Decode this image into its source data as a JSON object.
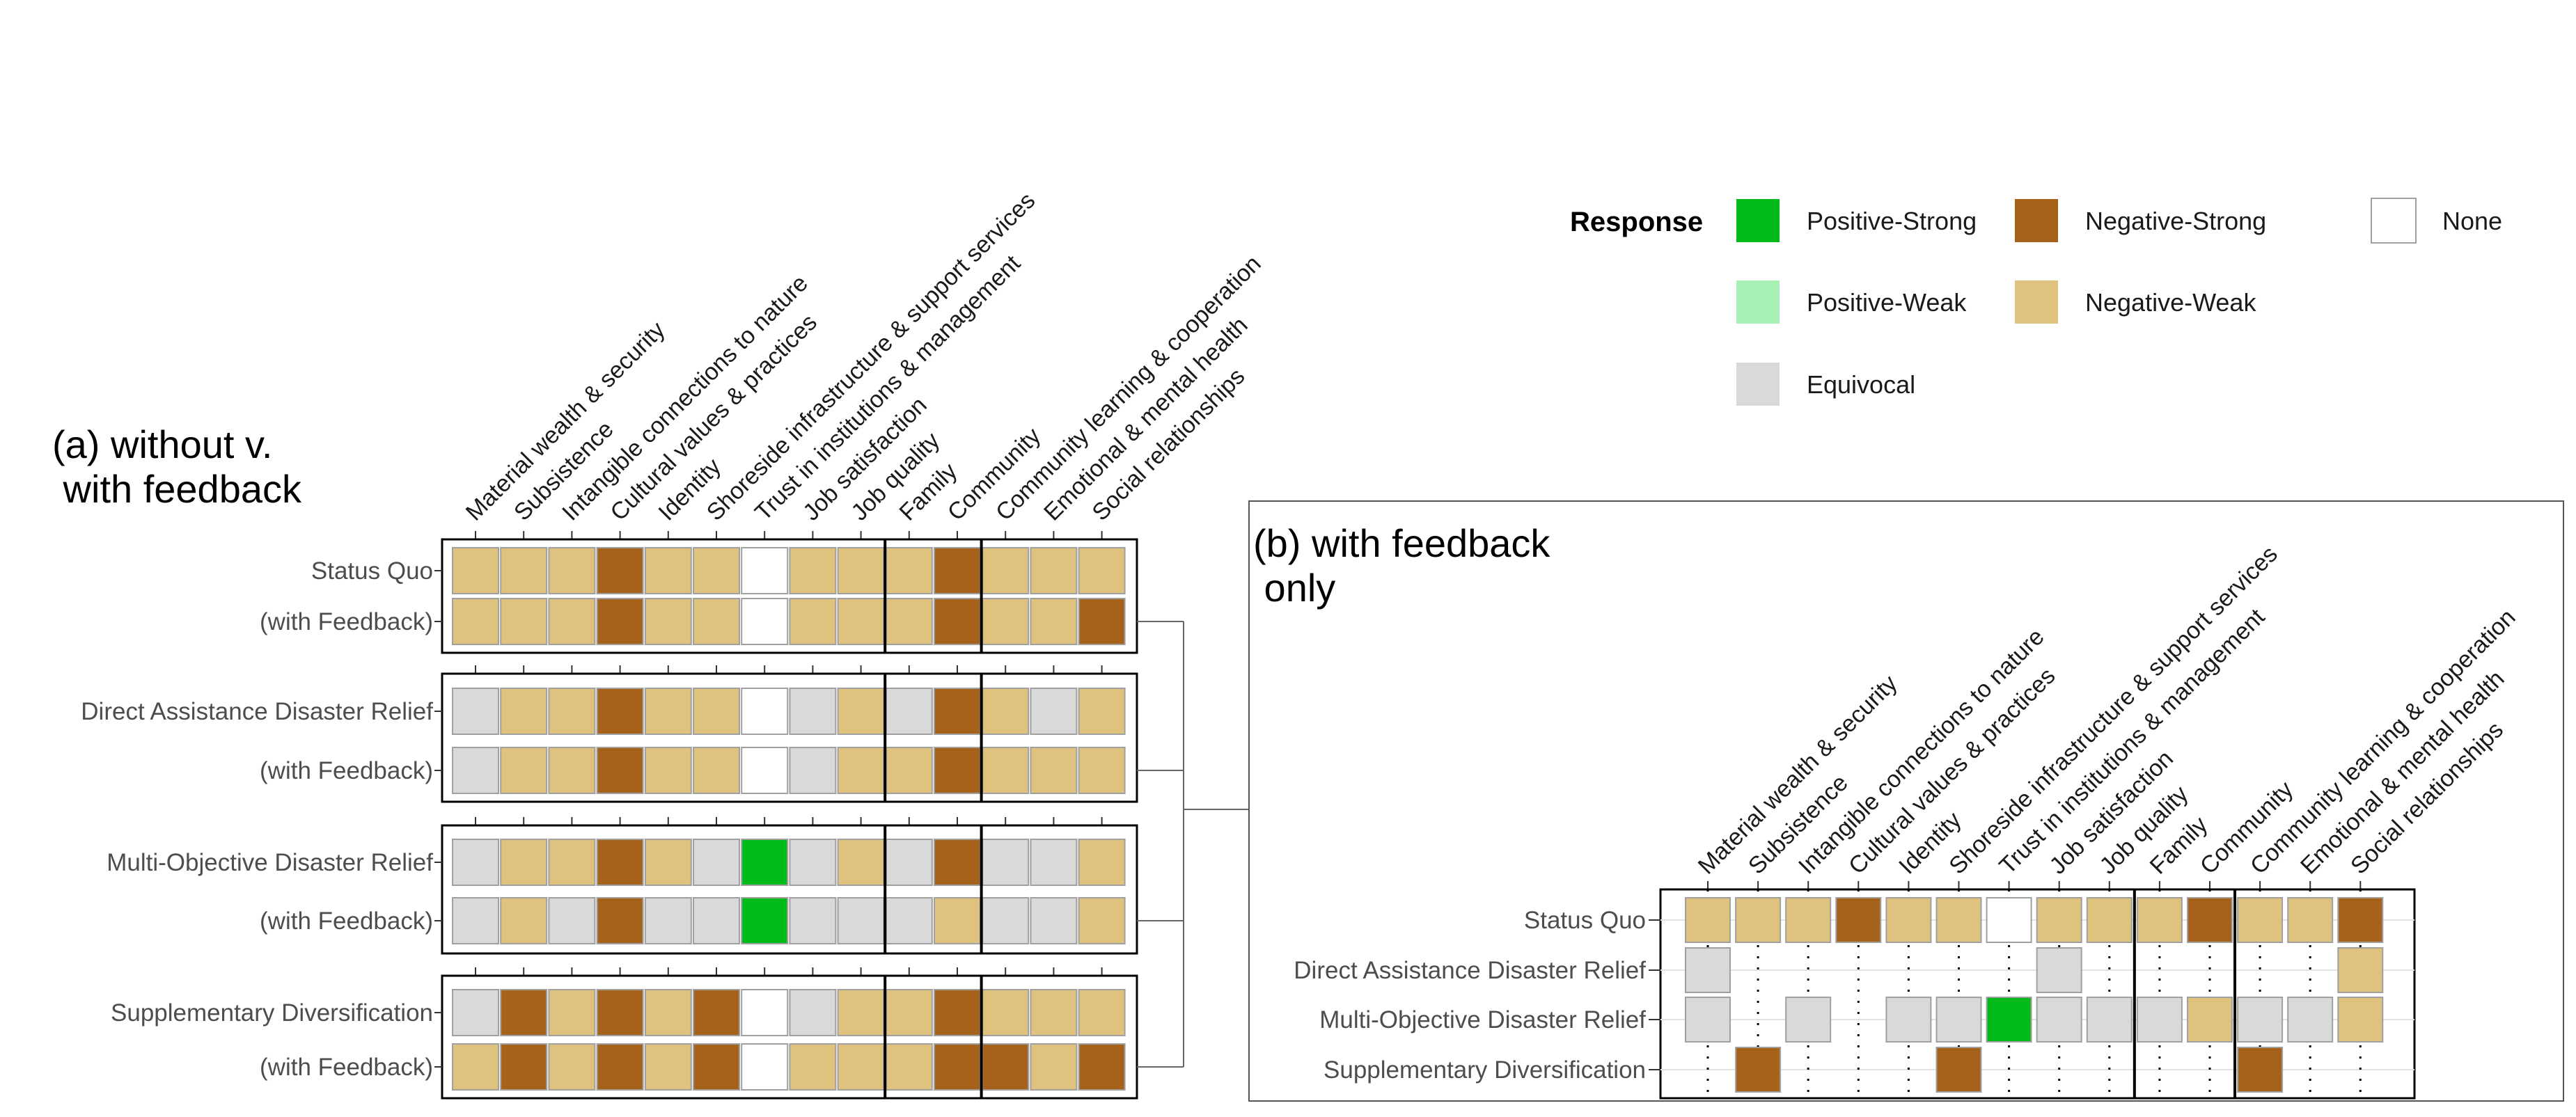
{
  "legend": {
    "title": "Response",
    "items": [
      {
        "key": "ps",
        "label": "Positive-Strong",
        "color": "#00BA19"
      },
      {
        "key": "ns",
        "label": "Negative-Strong",
        "color": "#A6611A"
      },
      {
        "key": "no",
        "label": "None",
        "color": "#FFFFFF"
      },
      {
        "key": "pw",
        "label": "Positive-Weak",
        "color": "#A6F0B3"
      },
      {
        "key": "nw",
        "label": "Negative-Weak",
        "color": "#DFC27D"
      },
      {
        "key": "eq",
        "label": "Equivocal",
        "color": "#D9D9D9"
      }
    ]
  },
  "chart_data": [
    {
      "type": "heatmap",
      "title": "(a) without v.\n   with feedback",
      "categories": [
        "Material wealth & security",
        "Subsistence",
        "Intangible connections to nature",
        "Cultural values & practices",
        "Identity",
        "Shoreside infrastructure & support services",
        "Trust in institutions & management",
        "Job satisfaction",
        "Job quality",
        "Family",
        "Community",
        "Community learning & cooperation",
        "Emotional & mental health",
        "Social relationships"
      ],
      "column_groups": [
        9,
        2,
        3
      ],
      "blocks": [
        {
          "rows": [
            {
              "label": "Status Quo",
              "values": [
                "nw",
                "nw",
                "nw",
                "ns",
                "nw",
                "nw",
                "no",
                "nw",
                "nw",
                "nw",
                "ns",
                "nw",
                "nw",
                "nw"
              ]
            },
            {
              "label": "(with Feedback)",
              "values": [
                "nw",
                "nw",
                "nw",
                "ns",
                "nw",
                "nw",
                "no",
                "nw",
                "nw",
                "nw",
                "ns",
                "nw",
                "nw",
                "ns"
              ]
            }
          ]
        },
        {
          "rows": [
            {
              "label": "Direct Assistance Disaster Relief",
              "values": [
                "eq",
                "nw",
                "nw",
                "ns",
                "nw",
                "nw",
                "no",
                "eq",
                "nw",
                "eq",
                "ns",
                "nw",
                "eq",
                "nw"
              ]
            },
            {
              "label": "(with Feedback)",
              "values": [
                "eq",
                "nw",
                "nw",
                "ns",
                "nw",
                "nw",
                "no",
                "eq",
                "nw",
                "nw",
                "ns",
                "nw",
                "nw",
                "nw"
              ]
            }
          ]
        },
        {
          "rows": [
            {
              "label": "Multi-Objective Disaster Relief",
              "values": [
                "eq",
                "nw",
                "nw",
                "ns",
                "nw",
                "eq",
                "ps",
                "eq",
                "nw",
                "eq",
                "ns",
                "eq",
                "eq",
                "nw"
              ]
            },
            {
              "label": "(with Feedback)",
              "values": [
                "eq",
                "nw",
                "eq",
                "ns",
                "eq",
                "eq",
                "ps",
                "eq",
                "eq",
                "eq",
                "nw",
                "eq",
                "eq",
                "nw"
              ]
            }
          ]
        },
        {
          "rows": [
            {
              "label": "Supplementary Diversification",
              "values": [
                "eq",
                "ns",
                "nw",
                "ns",
                "nw",
                "ns",
                "no",
                "eq",
                "nw",
                "nw",
                "ns",
                "nw",
                "nw",
                "nw"
              ]
            },
            {
              "label": "(with Feedback)",
              "values": [
                "nw",
                "ns",
                "nw",
                "ns",
                "nw",
                "ns",
                "no",
                "nw",
                "nw",
                "nw",
                "ns",
                "ns",
                "nw",
                "ns"
              ]
            }
          ]
        }
      ]
    },
    {
      "type": "heatmap",
      "title": "(b) with feedback\n      only",
      "categories": [
        "Material wealth & security",
        "Subsistence",
        "Intangible connections to nature",
        "Cultural values & practices",
        "Identity",
        "Shoreside infrastructure & support services",
        "Trust in institutions & management",
        "Job satisfaction",
        "Job quality",
        "Family",
        "Community",
        "Community learning & cooperation",
        "Emotional & mental health",
        "Social relationships"
      ],
      "column_groups": [
        9,
        2,
        3
      ],
      "rows": [
        {
          "label": "Status Quo",
          "values": [
            "nw",
            "nw",
            "nw",
            "ns",
            "nw",
            "nw",
            "no",
            "nw",
            "nw",
            "nw",
            "ns",
            "nw",
            "nw",
            "ns"
          ]
        },
        {
          "label": "Direct Assistance Disaster Relief",
          "values": [
            "eq",
            null,
            null,
            null,
            null,
            null,
            null,
            "eq",
            null,
            null,
            null,
            null,
            null,
            "nw"
          ]
        },
        {
          "label": "Multi-Objective Disaster Relief",
          "values": [
            "eq",
            null,
            "eq",
            null,
            "eq",
            "eq",
            "ps",
            "eq",
            "eq",
            "eq",
            "nw",
            "eq",
            "eq",
            "nw"
          ]
        },
        {
          "label": "Supplementary Diversification",
          "values": [
            null,
            "ns",
            null,
            null,
            null,
            "ns",
            null,
            null,
            null,
            null,
            null,
            "ns",
            null,
            null
          ]
        }
      ]
    }
  ]
}
